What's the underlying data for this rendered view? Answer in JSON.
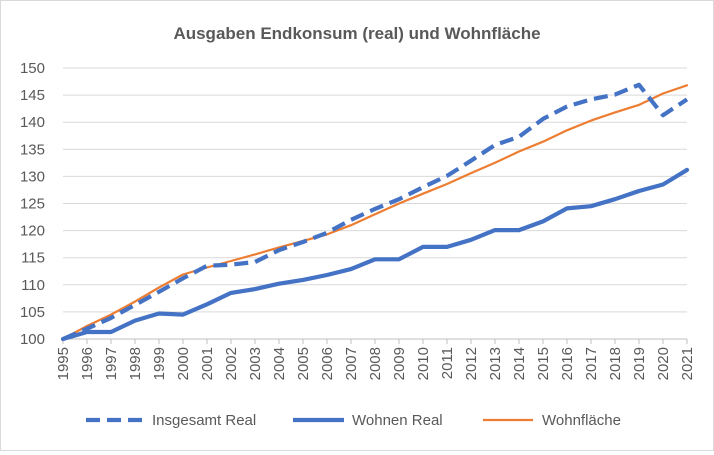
{
  "chart_data": {
    "type": "line",
    "title": "Ausgaben Endkonsum (real) und Wohnfläche",
    "xlabel": "",
    "ylabel": "",
    "x": [
      "1995",
      "1996",
      "1997",
      "1998",
      "1999",
      "2000",
      "2001",
      "2002",
      "2003",
      "2004",
      "2005",
      "2006",
      "2007",
      "2008",
      "2009",
      "2010",
      "2011",
      "2012",
      "2013",
      "2014",
      "2015",
      "2016",
      "2017",
      "2018",
      "2019",
      "2020",
      "2021"
    ],
    "ylim": [
      100,
      150
    ],
    "yticks": [
      100,
      105,
      110,
      115,
      120,
      125,
      130,
      135,
      140,
      145,
      150
    ],
    "grid": true,
    "legend_position": "bottom",
    "series": [
      {
        "name": "Insgesamt Real",
        "color": "#4472C4",
        "style": "dashed",
        "values": [
          100,
          101.9,
          103.9,
          106.3,
          108.7,
          111.2,
          113.5,
          113.7,
          114.2,
          116.4,
          117.9,
          119.6,
          122.0,
          124.0,
          125.8,
          128.0,
          130.1,
          132.9,
          135.8,
          137.3,
          140.6,
          142.9,
          144.2,
          145.1,
          146.9,
          141.3,
          144.2
        ]
      },
      {
        "name": "Wohnen Real",
        "color": "#4472C4",
        "style": "solid",
        "values": [
          100,
          101.3,
          101.3,
          103.4,
          104.7,
          104.5,
          106.4,
          108.5,
          109.2,
          110.2,
          110.9,
          111.8,
          112.9,
          114.7,
          114.7,
          117.0,
          117.0,
          118.3,
          120.1,
          120.1,
          121.7,
          124.1,
          124.5,
          125.8,
          127.3,
          128.5,
          131.2
        ]
      },
      {
        "name": "Wohnfläche",
        "color": "#ED7D31",
        "style": "solid",
        "values": [
          100,
          102.4,
          104.5,
          106.9,
          109.5,
          111.9,
          113.2,
          114.4,
          115.6,
          116.9,
          118.1,
          119.3,
          121.0,
          123.0,
          125.0,
          126.8,
          128.6,
          130.6,
          132.5,
          134.6,
          136.4,
          138.5,
          140.3,
          141.8,
          143.2,
          145.3,
          146.8
        ]
      }
    ]
  }
}
